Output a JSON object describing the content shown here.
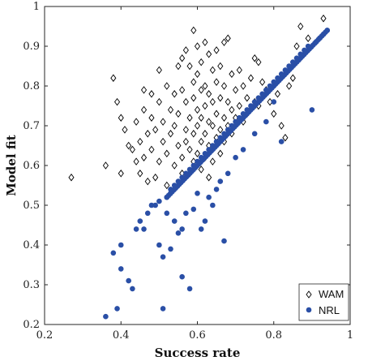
{
  "chart_data": {
    "type": "scatter",
    "xlabel": "Success rate",
    "ylabel": "Model fit",
    "xlim": [
      0.2,
      1.0
    ],
    "ylim": [
      0.2,
      1.0
    ],
    "x_ticks": [
      0.2,
      0.4,
      0.6,
      0.8,
      1.0
    ],
    "y_ticks": [
      0.2,
      0.3,
      0.4,
      0.5,
      0.6,
      0.7,
      0.8,
      0.9,
      1.0
    ],
    "x_tick_labels": [
      "0.2",
      "0.4",
      "0.6",
      "0.8",
      "1"
    ],
    "y_tick_labels": [
      "0.2",
      "0.3",
      "0.4",
      "0.5",
      "0.6",
      "0.7",
      "0.8",
      "0.9",
      "1"
    ],
    "grid": false,
    "legend_position": "bottom-right",
    "series": [
      {
        "name": "WAM",
        "marker": "diamond-open",
        "color": "#000000",
        "points": [
          [
            0.27,
            0.57
          ],
          [
            0.36,
            0.6
          ],
          [
            0.38,
            0.82
          ],
          [
            0.39,
            0.76
          ],
          [
            0.4,
            0.72
          ],
          [
            0.4,
            0.58
          ],
          [
            0.41,
            0.69
          ],
          [
            0.42,
            0.65
          ],
          [
            0.43,
            0.64
          ],
          [
            0.44,
            0.71
          ],
          [
            0.44,
            0.61
          ],
          [
            0.45,
            0.66
          ],
          [
            0.45,
            0.58
          ],
          [
            0.46,
            0.79
          ],
          [
            0.46,
            0.74
          ],
          [
            0.46,
            0.62
          ],
          [
            0.47,
            0.68
          ],
          [
            0.47,
            0.56
          ],
          [
            0.48,
            0.78
          ],
          [
            0.48,
            0.72
          ],
          [
            0.48,
            0.64
          ],
          [
            0.49,
            0.69
          ],
          [
            0.49,
            0.57
          ],
          [
            0.5,
            0.84
          ],
          [
            0.5,
            0.76
          ],
          [
            0.5,
            0.61
          ],
          [
            0.51,
            0.66
          ],
          [
            0.51,
            0.71
          ],
          [
            0.52,
            0.8
          ],
          [
            0.52,
            0.63
          ],
          [
            0.52,
            0.55
          ],
          [
            0.53,
            0.74
          ],
          [
            0.53,
            0.68
          ],
          [
            0.54,
            0.78
          ],
          [
            0.54,
            0.6
          ],
          [
            0.54,
            0.7
          ],
          [
            0.55,
            0.85
          ],
          [
            0.55,
            0.73
          ],
          [
            0.55,
            0.65
          ],
          [
            0.56,
            0.87
          ],
          [
            0.56,
            0.79
          ],
          [
            0.56,
            0.62
          ],
          [
            0.56,
            0.58
          ],
          [
            0.57,
            0.89
          ],
          [
            0.57,
            0.76
          ],
          [
            0.57,
            0.69
          ],
          [
            0.57,
            0.66
          ],
          [
            0.58,
            0.85
          ],
          [
            0.58,
            0.72
          ],
          [
            0.58,
            0.64
          ],
          [
            0.58,
            0.58
          ],
          [
            0.59,
            0.94
          ],
          [
            0.59,
            0.81
          ],
          [
            0.59,
            0.77
          ],
          [
            0.59,
            0.68
          ],
          [
            0.59,
            0.61
          ],
          [
            0.6,
            0.9
          ],
          [
            0.6,
            0.83
          ],
          [
            0.6,
            0.74
          ],
          [
            0.6,
            0.7
          ],
          [
            0.6,
            0.63
          ],
          [
            0.61,
            0.86
          ],
          [
            0.61,
            0.79
          ],
          [
            0.61,
            0.72
          ],
          [
            0.61,
            0.66
          ],
          [
            0.61,
            0.59
          ],
          [
            0.62,
            0.91
          ],
          [
            0.62,
            0.8
          ],
          [
            0.62,
            0.75
          ],
          [
            0.62,
            0.68
          ],
          [
            0.62,
            0.62
          ],
          [
            0.63,
            0.88
          ],
          [
            0.63,
            0.78
          ],
          [
            0.63,
            0.71
          ],
          [
            0.63,
            0.65
          ],
          [
            0.63,
            0.57
          ],
          [
            0.64,
            0.84
          ],
          [
            0.64,
            0.76
          ],
          [
            0.64,
            0.7
          ],
          [
            0.64,
            0.61
          ],
          [
            0.65,
            0.89
          ],
          [
            0.65,
            0.81
          ],
          [
            0.65,
            0.73
          ],
          [
            0.65,
            0.67
          ],
          [
            0.66,
            0.85
          ],
          [
            0.66,
            0.77
          ],
          [
            0.66,
            0.69
          ],
          [
            0.66,
            0.63
          ],
          [
            0.67,
            0.91
          ],
          [
            0.67,
            0.8
          ],
          [
            0.67,
            0.72
          ],
          [
            0.67,
            0.66
          ],
          [
            0.68,
            0.92
          ],
          [
            0.68,
            0.76
          ],
          [
            0.68,
            0.7
          ],
          [
            0.69,
            0.83
          ],
          [
            0.69,
            0.74
          ],
          [
            0.69,
            0.68
          ],
          [
            0.7,
            0.79
          ],
          [
            0.7,
            0.72
          ],
          [
            0.71,
            0.84
          ],
          [
            0.71,
            0.75
          ],
          [
            0.72,
            0.8
          ],
          [
            0.72,
            0.71
          ],
          [
            0.73,
            0.77
          ],
          [
            0.73,
            0.73
          ],
          [
            0.74,
            0.82
          ],
          [
            0.75,
            0.87
          ],
          [
            0.75,
            0.76
          ],
          [
            0.76,
            0.86
          ],
          [
            0.76,
            0.75
          ],
          [
            0.77,
            0.81
          ],
          [
            0.78,
            0.79
          ],
          [
            0.79,
            0.76
          ],
          [
            0.8,
            0.73
          ],
          [
            0.81,
            0.78
          ],
          [
            0.82,
            0.7
          ],
          [
            0.83,
            0.67
          ],
          [
            0.84,
            0.8
          ],
          [
            0.85,
            0.82
          ],
          [
            0.86,
            0.9
          ],
          [
            0.87,
            0.95
          ],
          [
            0.89,
            0.92
          ],
          [
            0.93,
            0.97
          ]
        ]
      },
      {
        "name": "NRL",
        "marker": "circle-filled",
        "color": "#2a4fa6",
        "points": [
          [
            0.36,
            0.22
          ],
          [
            0.38,
            0.38
          ],
          [
            0.39,
            0.24
          ],
          [
            0.4,
            0.4
          ],
          [
            0.4,
            0.34
          ],
          [
            0.42,
            0.31
          ],
          [
            0.43,
            0.29
          ],
          [
            0.44,
            0.44
          ],
          [
            0.45,
            0.46
          ],
          [
            0.46,
            0.44
          ],
          [
            0.47,
            0.48
          ],
          [
            0.48,
            0.5
          ],
          [
            0.49,
            0.5
          ],
          [
            0.5,
            0.51
          ],
          [
            0.5,
            0.4
          ],
          [
            0.51,
            0.37
          ],
          [
            0.51,
            0.24
          ],
          [
            0.52,
            0.52
          ],
          [
            0.52,
            0.48
          ],
          [
            0.53,
            0.54
          ],
          [
            0.53,
            0.39
          ],
          [
            0.54,
            0.55
          ],
          [
            0.54,
            0.46
          ],
          [
            0.55,
            0.56
          ],
          [
            0.55,
            0.43
          ],
          [
            0.56,
            0.57
          ],
          [
            0.56,
            0.44
          ],
          [
            0.56,
            0.32
          ],
          [
            0.57,
            0.58
          ],
          [
            0.57,
            0.48
          ],
          [
            0.58,
            0.59
          ],
          [
            0.58,
            0.29
          ],
          [
            0.59,
            0.6
          ],
          [
            0.59,
            0.49
          ],
          [
            0.6,
            0.61
          ],
          [
            0.6,
            0.53
          ],
          [
            0.61,
            0.62
          ],
          [
            0.61,
            0.44
          ],
          [
            0.62,
            0.63
          ],
          [
            0.62,
            0.46
          ],
          [
            0.63,
            0.64
          ],
          [
            0.63,
            0.52
          ],
          [
            0.64,
            0.65
          ],
          [
            0.64,
            0.5
          ],
          [
            0.65,
            0.66
          ],
          [
            0.65,
            0.54
          ],
          [
            0.66,
            0.67
          ],
          [
            0.66,
            0.56
          ],
          [
            0.67,
            0.68
          ],
          [
            0.67,
            0.41
          ],
          [
            0.68,
            0.69
          ],
          [
            0.68,
            0.58
          ],
          [
            0.69,
            0.7
          ],
          [
            0.7,
            0.71
          ],
          [
            0.7,
            0.62
          ],
          [
            0.71,
            0.72
          ],
          [
            0.72,
            0.73
          ],
          [
            0.72,
            0.64
          ],
          [
            0.73,
            0.74
          ],
          [
            0.74,
            0.75
          ],
          [
            0.75,
            0.76
          ],
          [
            0.75,
            0.68
          ],
          [
            0.76,
            0.77
          ],
          [
            0.77,
            0.78
          ],
          [
            0.78,
            0.79
          ],
          [
            0.78,
            0.71
          ],
          [
            0.79,
            0.8
          ],
          [
            0.8,
            0.81
          ],
          [
            0.8,
            0.76
          ],
          [
            0.81,
            0.82
          ],
          [
            0.82,
            0.83
          ],
          [
            0.82,
            0.66
          ],
          [
            0.83,
            0.84
          ],
          [
            0.84,
            0.85
          ],
          [
            0.85,
            0.86
          ],
          [
            0.86,
            0.87
          ],
          [
            0.87,
            0.88
          ],
          [
            0.88,
            0.89
          ],
          [
            0.89,
            0.9
          ],
          [
            0.9,
            0.74
          ],
          [
            0.91,
            0.91
          ],
          [
            0.92,
            0.92
          ],
          [
            0.93,
            0.93
          ],
          [
            0.94,
            0.94
          ]
        ]
      }
    ],
    "nrl_dense_band": {
      "x_start": 0.52,
      "x_end": 0.94,
      "y_start": 0.52,
      "y_end": 0.94
    }
  }
}
